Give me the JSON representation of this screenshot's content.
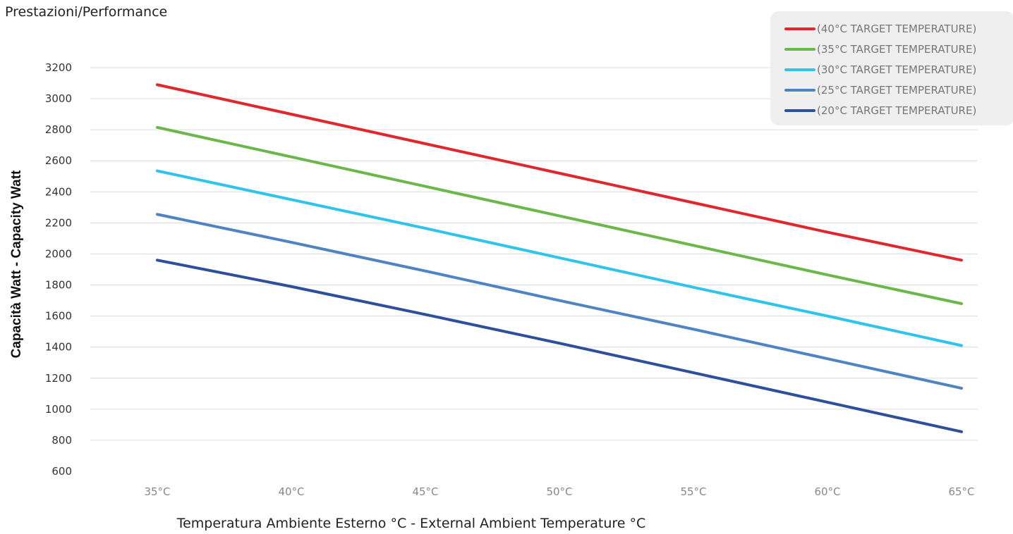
{
  "chart_data": {
    "type": "line",
    "title": "Prestazioni/Performance",
    "xlabel": "Temperatura Ambiente Esterno °C - External Ambient Temperature °C",
    "ylabel": "Capacità Watt - Capacity Watt",
    "categories": [
      "35°C",
      "40°C",
      "45°C",
      "50°C",
      "55°C",
      "60°C",
      "65°C"
    ],
    "x": [
      35,
      40,
      45,
      50,
      55,
      60,
      65
    ],
    "ylim": [
      600,
      3200
    ],
    "yticks": [
      "600",
      "800",
      "1000",
      "1200",
      "1400",
      "1600",
      "1800",
      "2000",
      "2200",
      "2400",
      "2600",
      "2800",
      "3000",
      "3200"
    ],
    "grid": true,
    "legend_position": "top-right",
    "series": [
      {
        "name": "(40°C TARGET TEMPERATURE)",
        "color": "#e0282c",
        "values": [
          3090,
          2900,
          2710,
          2520,
          2330,
          2140,
          1960
        ]
      },
      {
        "name": "(35°C TARGET TEMPERATURE)",
        "color": "#6ab74a",
        "values": [
          2815,
          2625,
          2435,
          2245,
          2055,
          1865,
          1680
        ]
      },
      {
        "name": "(30°C TARGET TEMPERATURE)",
        "color": "#2ec4ec",
        "values": [
          2535,
          2350,
          2165,
          1975,
          1785,
          1600,
          1410
        ]
      },
      {
        "name": "(25°C TARGET TEMPERATURE)",
        "color": "#4e83c4",
        "values": [
          2255,
          2075,
          1890,
          1700,
          1515,
          1325,
          1135
        ]
      },
      {
        "name": "(20°C TARGET TEMPERATURE)",
        "color": "#2e4f9c",
        "values": [
          1960,
          1790,
          1610,
          1425,
          1235,
          1045,
          855
        ]
      }
    ]
  }
}
